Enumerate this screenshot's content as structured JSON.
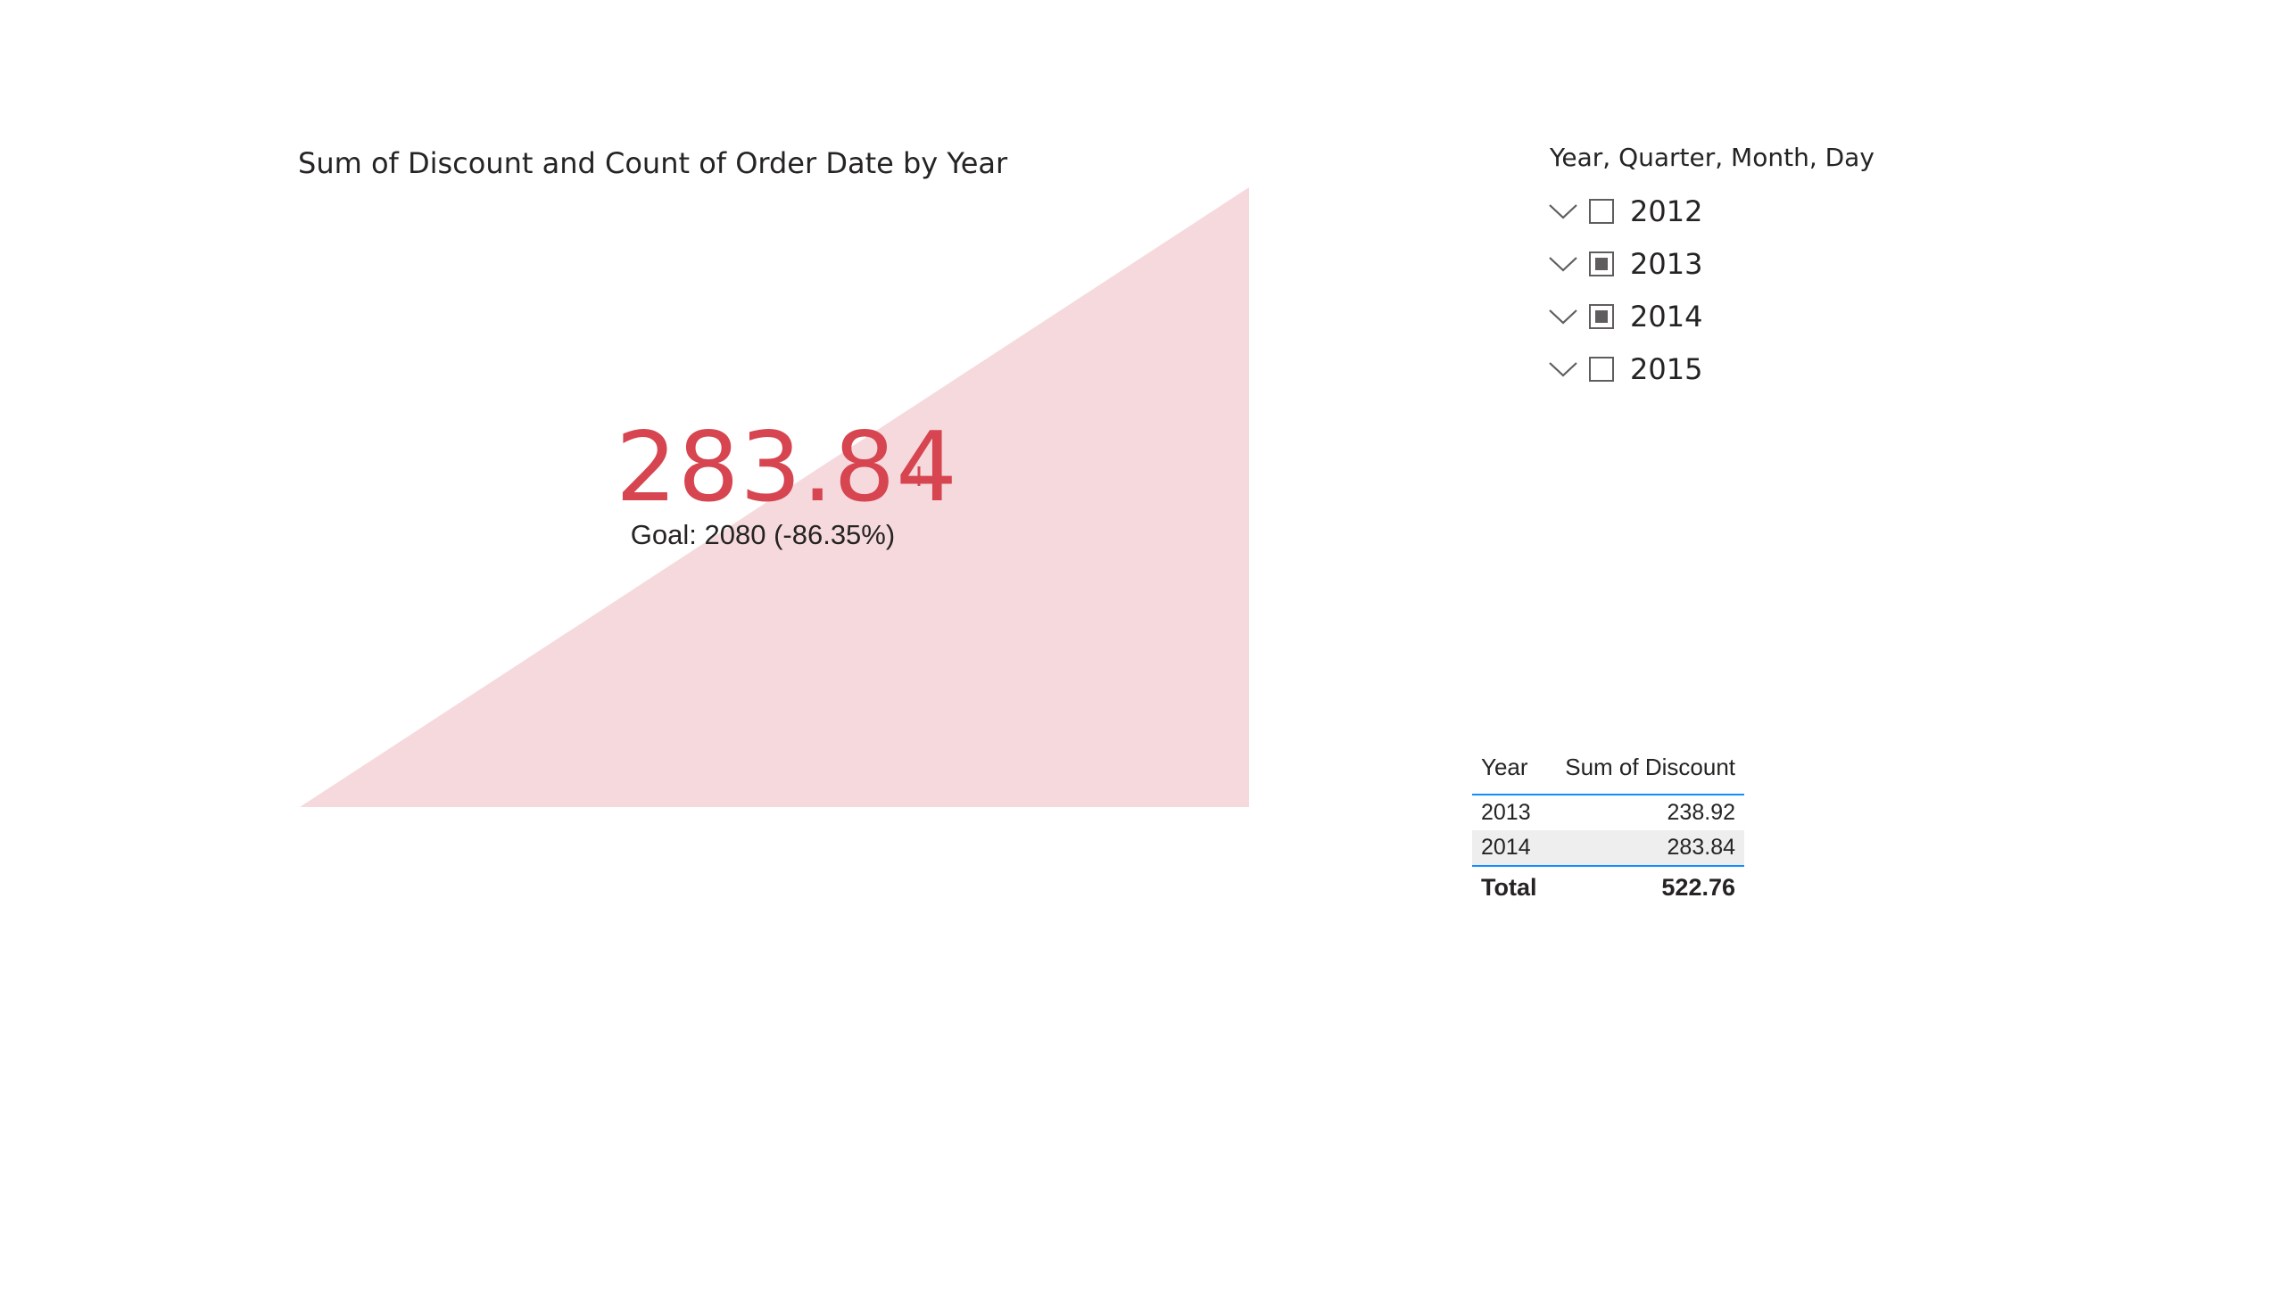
{
  "kpi": {
    "title": "Sum of Discount and Count of Order Date by Year",
    "value": "283.84",
    "alert_icon": "!",
    "goal_text": "Goal: 2080 (-86.35%)",
    "value_color": "#d64550",
    "trend_color": "#f6d9dc"
  },
  "slicer": {
    "header": "Year, Quarter, Month, Day",
    "items": [
      {
        "label": "2012",
        "state": "unchecked",
        "icon": "chevron-down-icon"
      },
      {
        "label": "2013",
        "state": "partial",
        "icon": "chevron-down-icon"
      },
      {
        "label": "2014",
        "state": "partial",
        "icon": "chevron-down-icon"
      },
      {
        "label": "2015",
        "state": "unchecked",
        "icon": "chevron-down-icon"
      }
    ]
  },
  "table": {
    "columns": [
      "Year",
      "Sum of Discount"
    ],
    "rows": [
      [
        "2013",
        "238.92"
      ],
      [
        "2014",
        "283.84"
      ]
    ],
    "total": [
      "Total",
      "522.76"
    ],
    "accent_color": "#118dff"
  }
}
